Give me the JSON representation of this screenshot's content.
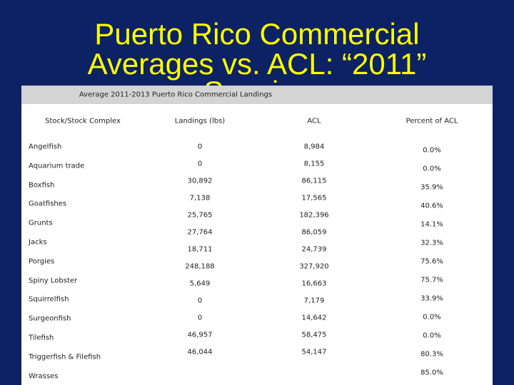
{
  "header": {
    "title_lines": [
      "Puerto Rico Commercial",
      "Averages vs. ACL: “2011”",
      "Species"
    ]
  },
  "table": {
    "caption": "Average 2011-2013 Puerto Rico Commercial Landings",
    "columns": [
      "Stock/Stock Complex",
      "Landings (lbs)",
      "ACL",
      "Percent of ACL"
    ],
    "rows": [
      [
        "Angelfish",
        "0",
        "8,984",
        "0.0%"
      ],
      [
        "Aquarium trade",
        "0",
        "8,155",
        "0.0%"
      ],
      [
        "Boxfish",
        "30,892",
        "86,115",
        "35.9%"
      ],
      [
        "Goatfishes",
        "7,138",
        "17,565",
        "40.6%"
      ],
      [
        "Grunts",
        "25,765",
        "182,396",
        "14.1%"
      ],
      [
        "Jacks",
        "27,764",
        "86,059",
        "32.3%"
      ],
      [
        "Porgies",
        "18,711",
        "24,739",
        "75.6%"
      ],
      [
        "Spiny Lobster",
        "248,188",
        "327,920",
        "75.7%"
      ],
      [
        "Squirrelfish",
        "5,649",
        "16,663",
        "33.9%"
      ],
      [
        "Surgeonfish",
        "0",
        "7,179",
        "0.0%"
      ],
      [
        "Tilefish",
        "0",
        "14,642",
        "0.0%"
      ],
      [
        "Triggerfish & Filefish",
        "46,957",
        "58,475",
        "80.3%"
      ],
      [
        "Wrasses",
        "46,044",
        "54,147",
        "85.0%"
      ]
    ]
  }
}
